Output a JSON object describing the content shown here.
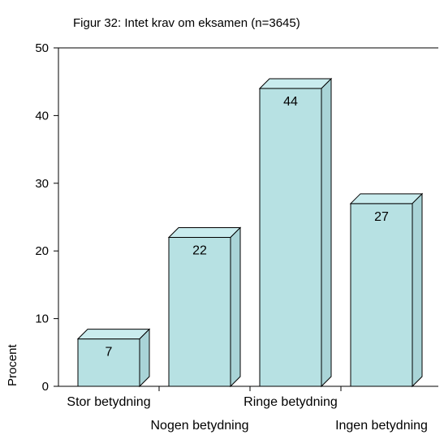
{
  "chart_data": {
    "type": "bar",
    "title": "Figur 32: Intet krav om eksamen (n=3645)",
    "ylabel": "Procent",
    "xlabel": "",
    "categories": [
      "Stor betydning",
      "Nogen betydning",
      "Ringe betydning",
      "Ingen betydning"
    ],
    "values": [
      7,
      22,
      44,
      27
    ],
    "data_labels": [
      "7",
      "22",
      "44",
      "27"
    ],
    "ylim": [
      0,
      50
    ],
    "yticks": [
      "0",
      "10",
      "20",
      "30",
      "40",
      "50"
    ],
    "grid": false,
    "bar_style": "3d",
    "colors": {
      "bar_front": "#b7e1e3",
      "bar_top": "#c9ecee",
      "bar_side": "#a9d4d7",
      "outline": "#000000"
    }
  }
}
